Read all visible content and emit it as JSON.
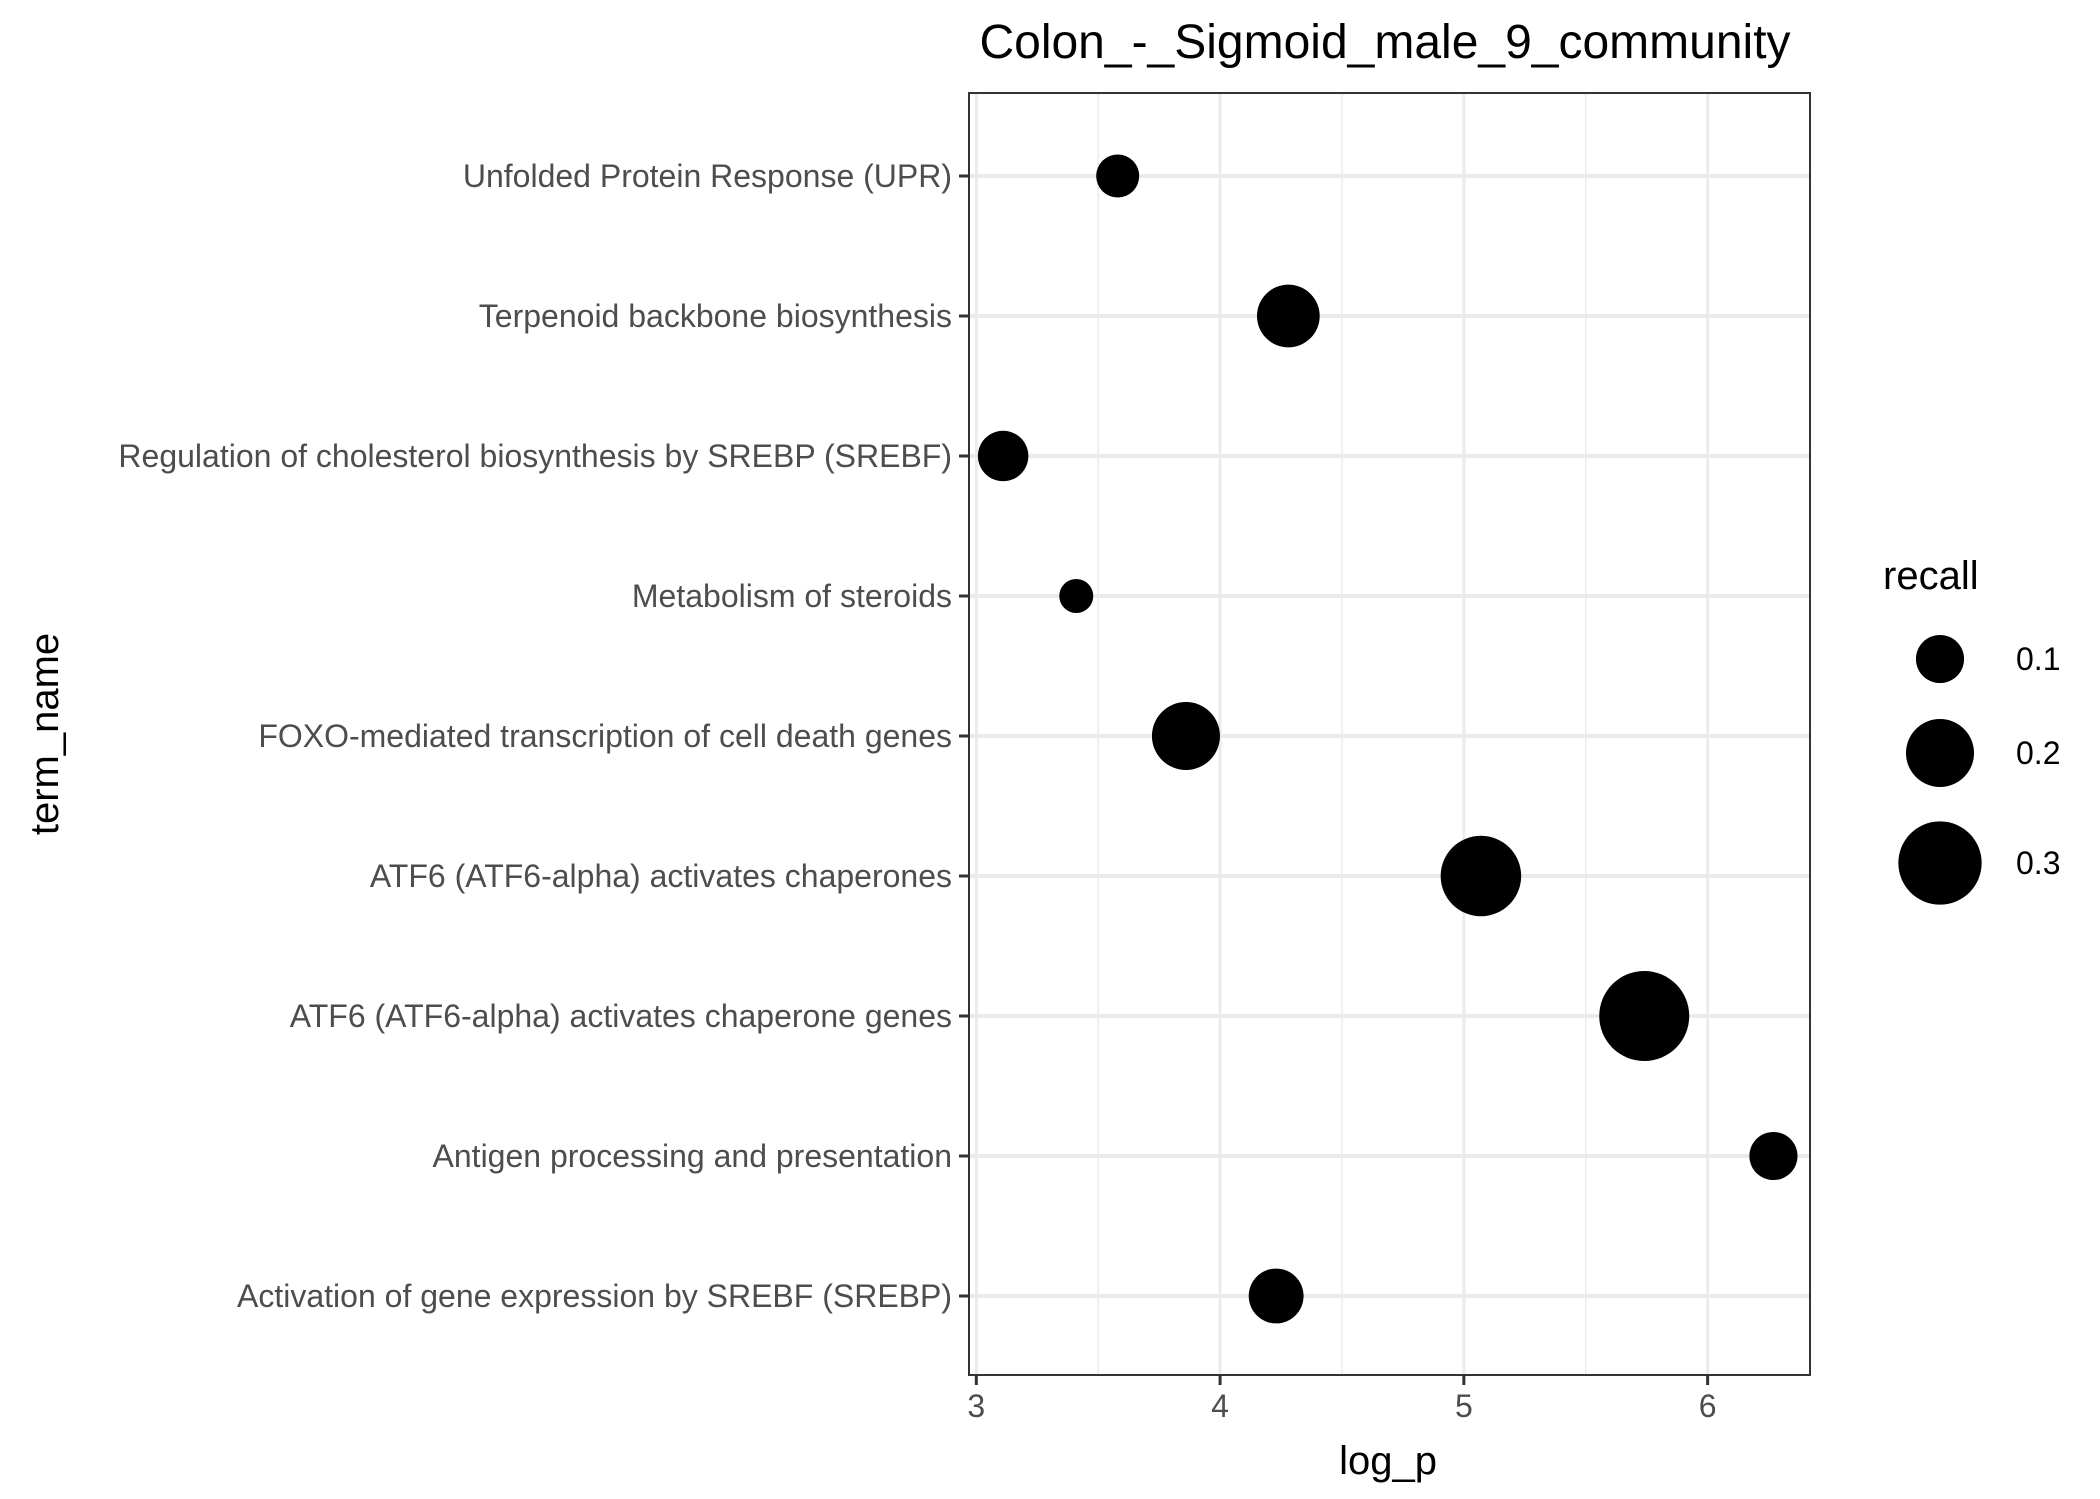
{
  "chart_data": {
    "type": "scatter",
    "title": "Colon_-_Sigmoid_male_9_community",
    "xlabel": "log_p",
    "ylabel": "term_name",
    "xlim": [
      2.97,
      6.42
    ],
    "x_ticks": [
      3,
      4,
      5,
      6
    ],
    "x_tick_labels": [
      "3",
      "4",
      "5",
      "6"
    ],
    "categories": [
      "Unfolded Protein Response (UPR)",
      "Terpenoid backbone biosynthesis",
      "Regulation of cholesterol biosynthesis by SREBP (SREBF)",
      "Metabolism of steroids",
      "FOXO-mediated transcription of cell death genes",
      "ATF6 (ATF6-alpha) activates chaperones",
      "ATF6 (ATF6-alpha) activates chaperone genes",
      "Antigen processing and presentation",
      "Activation of gene expression by SREBF (SREBP)"
    ],
    "points": [
      {
        "term": "Unfolded Protein Response (UPR)",
        "log_p": 3.58,
        "recall": 0.08
      },
      {
        "term": "Terpenoid backbone biosynthesis",
        "log_p": 4.28,
        "recall": 0.17
      },
      {
        "term": "Regulation of cholesterol biosynthesis by SREBP (SREBF)",
        "log_p": 3.11,
        "recall": 0.11
      },
      {
        "term": "Metabolism of steroids",
        "log_p": 3.41,
        "recall": 0.05
      },
      {
        "term": "FOXO-mediated transcription of cell death genes",
        "log_p": 3.86,
        "recall": 0.2
      },
      {
        "term": "ATF6 (ATF6-alpha) activates chaperones",
        "log_p": 5.07,
        "recall": 0.28
      },
      {
        "term": "ATF6 (ATF6-alpha) activates chaperone genes",
        "log_p": 5.74,
        "recall": 0.35
      },
      {
        "term": "Antigen processing and presentation",
        "log_p": 6.27,
        "recall": 0.1
      },
      {
        "term": "Activation of gene expression by SREBF (SREBP)",
        "log_p": 4.23,
        "recall": 0.13
      }
    ],
    "size_legend": {
      "title": "recall",
      "values": [
        0.1,
        0.2,
        0.3
      ],
      "labels": [
        "0.1",
        "0.2",
        "0.3"
      ]
    },
    "point_color": "#000000",
    "grid": true,
    "legend_position": "right",
    "background": "#ffffff",
    "gridline_color": "#ebebeb",
    "panel_border_color": "#333333"
  }
}
